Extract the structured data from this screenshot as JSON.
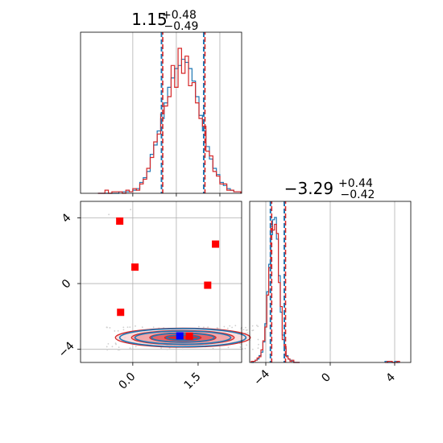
{
  "chart_data": [
    {
      "type": "histogram",
      "panel": "top-left",
      "title": {
        "value": "1.15",
        "sup": "+0.48",
        "sub": "−0.49"
      },
      "xlim": [
        -1.2,
        2.5
      ],
      "grid": true,
      "bin_edges": [
        -0.8,
        -0.72,
        -0.64,
        -0.56,
        -0.48,
        -0.4,
        -0.32,
        -0.24,
        -0.16,
        -0.08,
        0.0,
        0.08,
        0.16,
        0.24,
        0.32,
        0.4,
        0.48,
        0.56,
        0.64,
        0.72,
        0.8,
        0.88,
        0.96,
        1.04,
        1.12,
        1.2,
        1.28,
        1.36,
        1.44,
        1.52,
        1.6,
        1.68,
        1.76,
        1.84,
        1.92,
        2.0,
        2.08,
        2.16,
        2.24,
        2.32,
        2.4,
        2.48
      ],
      "series": [
        {
          "color": "#1f77b4",
          "values": [
            0,
            0,
            0,
            0,
            0,
            0,
            1,
            1,
            1,
            1,
            2,
            3,
            7,
            10,
            14,
            25,
            31,
            40,
            48,
            58,
            68,
            74,
            80,
            82,
            86,
            84,
            80,
            72,
            62,
            50,
            40,
            30,
            22,
            16,
            12,
            7,
            5,
            3,
            2,
            1,
            1
          ]
        },
        {
          "color": "#d62728",
          "values": [
            0,
            0,
            2,
            0,
            1,
            1,
            1,
            0,
            2,
            1,
            3,
            2,
            6,
            9,
            16,
            23,
            33,
            38,
            51,
            56,
            62,
            82,
            68,
            93,
            77,
            88,
            69,
            71,
            58,
            48,
            43,
            27,
            24,
            14,
            11,
            6,
            6,
            2,
            2,
            1,
            1
          ]
        }
      ],
      "quantile_lines": [
        0.66,
        1.15,
        1.63
      ]
    },
    {
      "type": "contour+scatter",
      "panel": "bottom-left",
      "xlim": [
        -1.2,
        2.5
      ],
      "ylim": [
        -4.8,
        5.0
      ],
      "xticks": [
        "0.0",
        "1.5"
      ],
      "yticks": [
        "4",
        "0",
        "−4"
      ],
      "grid": true,
      "blue_contours": {
        "color": "#1f77b4",
        "cx": 1.15,
        "cy": -3.29,
        "levels": [
          [
            1.45,
            0.55
          ],
          [
            1.1,
            0.4
          ],
          [
            0.72,
            0.27
          ],
          [
            0.38,
            0.15
          ]
        ]
      },
      "red_contours": {
        "color": "#d62728",
        "cx": 1.15,
        "cy": -3.29,
        "levels": [
          [
            1.55,
            0.58
          ],
          [
            1.18,
            0.43
          ],
          [
            0.76,
            0.29
          ],
          [
            0.42,
            0.17
          ]
        ]
      },
      "red_points": [
        [
          -0.3,
          3.8
        ],
        [
          0.05,
          1.0
        ],
        [
          1.9,
          2.4
        ],
        [
          1.72,
          -0.1
        ],
        [
          -0.28,
          -1.75
        ],
        [
          1.3,
          -3.2
        ]
      ],
      "blue_points": [
        [
          1.08,
          -3.18
        ]
      ]
    },
    {
      "type": "histogram",
      "panel": "bottom-right",
      "title": {
        "value": "−3.29",
        "sup": "+0.44",
        "sub": "−0.42"
      },
      "xlim": [
        -5.0,
        5.0
      ],
      "xticks": [
        "−4",
        "0",
        "4"
      ],
      "grid": true,
      "bin_edges": [
        -4.9,
        -4.78,
        -4.66,
        -4.54,
        -4.42,
        -4.3,
        -4.18,
        -4.06,
        -3.94,
        -3.82,
        -3.7,
        -3.58,
        -3.46,
        -3.34,
        -3.22,
        -3.1,
        -2.98,
        -2.86,
        -2.74,
        -2.62,
        -2.5,
        -2.38,
        -2.26,
        -2.14,
        -2.02,
        -1.9
      ],
      "series": [
        {
          "color": "#1f77b4",
          "values": [
            0,
            1,
            2,
            3,
            6,
            9,
            18,
            34,
            62,
            86,
            112,
            125,
            127,
            108,
            76,
            44,
            24,
            12,
            6,
            3,
            2,
            1,
            0,
            0,
            0
          ]
        },
        {
          "color": "#d62728",
          "values": [
            1,
            1,
            2,
            4,
            5,
            11,
            19,
            31,
            59,
            83,
            119,
            116,
            121,
            113,
            70,
            49,
            20,
            14,
            5,
            3,
            1,
            2,
            0,
            0,
            0
          ]
        }
      ],
      "tail_bins": {
        "edges": [
          3.4,
          3.55,
          3.7,
          3.85,
          4.0,
          4.15,
          4.3
        ],
        "blue": [
          1,
          0,
          0,
          0,
          1,
          0
        ],
        "red": [
          0,
          1,
          1,
          0,
          0,
          1
        ]
      },
      "quantile_lines": [
        -3.71,
        -3.29,
        -2.85
      ]
    }
  ]
}
